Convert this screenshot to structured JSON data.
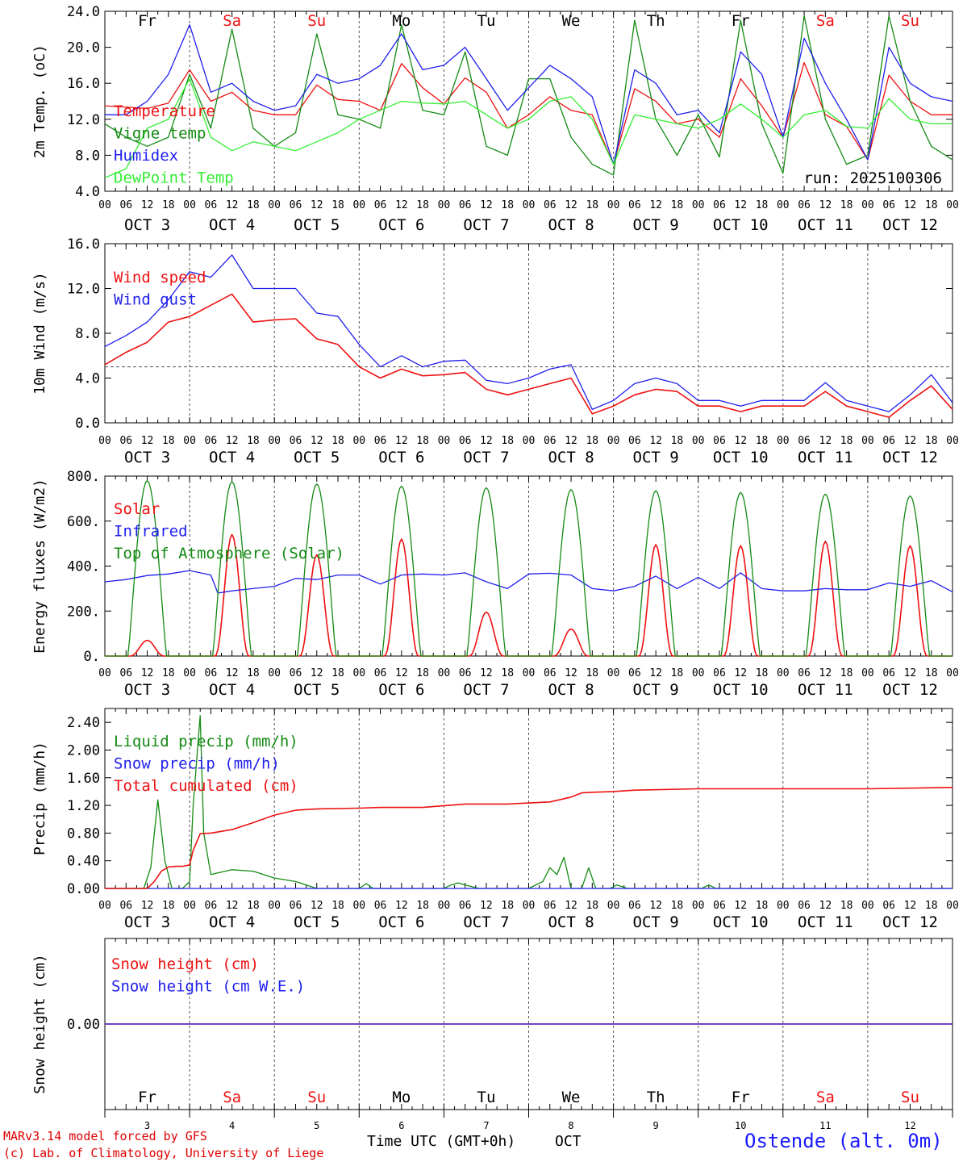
{
  "colors": {
    "red": "#ee1111",
    "green": "#138a13",
    "blue": "#1f1fee",
    "lightgreen": "#33ee33",
    "grid": "#555555"
  },
  "days": [
    "Fr",
    "Sa",
    "Su",
    "Mo",
    "Tu",
    "We",
    "Th",
    "Fr",
    "Sa",
    "Su"
  ],
  "weekend": [
    false,
    true,
    true,
    false,
    false,
    false,
    false,
    false,
    true,
    true
  ],
  "day_axis_labels": [
    "OCT  3",
    "OCT  4",
    "OCT  5",
    "OCT  6",
    "OCT  7",
    "OCT  8",
    "OCT  9",
    "OCT 10",
    "OCT 11",
    "OCT 12"
  ],
  "hour_ticks": [
    "00",
    "06",
    "12",
    "18"
  ],
  "end_tick": "00",
  "bottom_day_numbers": [
    "3",
    "4",
    "5",
    "6",
    "7",
    "8",
    "9",
    "10",
    "11",
    "12"
  ],
  "footer": {
    "credit1": "MARv3.14 model forced by GFS",
    "credit2": "(c) Lab. of Climatology, University of Liege",
    "xtitle": "Time UTC (GMT+0h)",
    "month": "OCT",
    "station": "Ostende (alt. 0m)"
  },
  "chart_data": [
    {
      "type": "line",
      "ylabel": "2m Temp. (oC)",
      "ylim": [
        4,
        24
      ],
      "yticks": [
        "4.0",
        "8.0",
        "12.0",
        "16.0",
        "20.0",
        "24.0"
      ],
      "x_unit": "hours since OCT 3 00 UTC",
      "annotation": "run: 2025100306",
      "series": [
        {
          "name": "Temperature",
          "color": "red",
          "x": [
            0,
            12,
            18,
            24,
            30,
            36,
            42,
            48,
            54,
            60,
            66,
            72,
            78,
            84,
            90,
            96,
            102,
            108,
            114,
            120,
            126,
            132,
            138,
            144,
            150,
            156,
            162,
            168,
            174,
            180,
            186,
            192,
            198,
            204,
            210,
            216,
            222,
            228,
            234,
            240
          ],
          "y": [
            13.5,
            13.2,
            13.8,
            17.5,
            14.0,
            15.0,
            13.0,
            12.5,
            12.5,
            15.8,
            14.2,
            14.0,
            13.0,
            18.2,
            15.5,
            13.7,
            16.6,
            15.0,
            11.0,
            12.5,
            14.5,
            13.0,
            12.5,
            7.0,
            15.4,
            14.0,
            11.5,
            12.0,
            10.0,
            16.5,
            13.5,
            10.0,
            18.3,
            12.5,
            11.2,
            7.5,
            16.9,
            14.0,
            12.5,
            12.5
          ]
        },
        {
          "name": "Vigne temp",
          "color": "green",
          "x": [
            0,
            6,
            12,
            18,
            24,
            30,
            36,
            42,
            48,
            54,
            60,
            66,
            72,
            78,
            84,
            90,
            96,
            102,
            108,
            114,
            120,
            126,
            132,
            138,
            144,
            150,
            156,
            162,
            168,
            174,
            180,
            186,
            192,
            198,
            204,
            210,
            216,
            222,
            228,
            234,
            240
          ],
          "y": [
            11.5,
            10.0,
            9.0,
            10.0,
            17.0,
            11.0,
            22.0,
            11.0,
            9.0,
            10.5,
            21.5,
            12.5,
            12.0,
            11.0,
            22.5,
            13.0,
            12.5,
            19.5,
            9.0,
            8.0,
            16.5,
            16.5,
            10.0,
            7.0,
            5.8,
            23.0,
            12.0,
            8.0,
            12.5,
            7.8,
            23.0,
            11.5,
            6.0,
            23.5,
            12.0,
            7.0,
            8.0,
            23.5,
            14.0,
            9.0,
            7.5
          ]
        },
        {
          "name": "Humidex",
          "color": "blue",
          "x": [
            0,
            6,
            12,
            18,
            24,
            30,
            36,
            42,
            48,
            54,
            60,
            66,
            72,
            78,
            84,
            90,
            96,
            102,
            108,
            114,
            120,
            126,
            132,
            138,
            144,
            150,
            156,
            162,
            168,
            174,
            180,
            186,
            192,
            198,
            204,
            210,
            216,
            222,
            228,
            234,
            240
          ],
          "y": [
            12.5,
            12.5,
            14.0,
            17.0,
            22.5,
            15.0,
            16.0,
            14.0,
            13.0,
            13.5,
            17.0,
            16.0,
            16.5,
            18.0,
            21.5,
            17.5,
            18.0,
            20.0,
            16.5,
            13.0,
            15.5,
            18.0,
            16.5,
            14.5,
            7.0,
            17.5,
            16.0,
            12.5,
            13.0,
            10.5,
            19.5,
            17.0,
            10.0,
            21.0,
            16.0,
            12.0,
            7.5,
            20.0,
            16.0,
            14.5,
            14.0
          ]
        },
        {
          "name": "DewPoint Temp",
          "color": "lightgreen",
          "x": [
            0,
            6,
            12,
            18,
            24,
            30,
            36,
            42,
            48,
            54,
            60,
            66,
            72,
            78,
            84,
            90,
            96,
            102,
            108,
            114,
            120,
            126,
            132,
            138,
            144,
            150,
            156,
            162,
            168,
            174,
            180,
            186,
            192,
            198,
            204,
            210,
            216,
            222,
            228,
            234,
            240
          ],
          "y": [
            5.5,
            6.5,
            11.0,
            12.0,
            16.5,
            10.0,
            8.5,
            9.5,
            9.0,
            8.5,
            9.5,
            10.5,
            12.0,
            13.0,
            14.0,
            13.8,
            13.7,
            14.0,
            12.5,
            11.0,
            12.0,
            14.0,
            14.5,
            12.0,
            7.0,
            12.5,
            12.0,
            11.5,
            11.0,
            12.0,
            13.7,
            12.0,
            10.0,
            12.5,
            13.0,
            11.2,
            11.0,
            14.3,
            12.0,
            11.5,
            11.5
          ]
        }
      ]
    },
    {
      "type": "line",
      "ylabel": "10m Wind (m/s)",
      "ylim": [
        0,
        16
      ],
      "yticks": [
        "0.0",
        "4.0",
        "8.0",
        "12.0",
        "16.0"
      ],
      "ref_line": 5.0,
      "series": [
        {
          "name": "Wind speed",
          "color": "red",
          "x": [
            0,
            6,
            12,
            18,
            24,
            30,
            36,
            42,
            48,
            54,
            60,
            66,
            72,
            78,
            84,
            90,
            96,
            102,
            108,
            114,
            120,
            126,
            132,
            138,
            144,
            150,
            156,
            162,
            168,
            174,
            180,
            186,
            192,
            198,
            204,
            210,
            216,
            222,
            228,
            234,
            240
          ],
          "y": [
            5.2,
            6.3,
            7.2,
            9.0,
            9.5,
            10.5,
            11.5,
            9.0,
            9.2,
            9.3,
            7.5,
            7.0,
            5.0,
            4.0,
            4.8,
            4.2,
            4.3,
            4.5,
            3.0,
            2.5,
            3.0,
            3.5,
            4.0,
            0.8,
            1.5,
            2.5,
            3.0,
            2.8,
            1.5,
            1.5,
            1.0,
            1.5,
            1.5,
            1.5,
            2.8,
            1.5,
            1.0,
            0.5,
            2.0,
            3.3,
            1.2
          ]
        },
        {
          "name": "Wind gust",
          "color": "blue",
          "x": [
            0,
            6,
            12,
            18,
            24,
            30,
            36,
            42,
            48,
            54,
            60,
            66,
            72,
            78,
            84,
            90,
            96,
            102,
            108,
            114,
            120,
            126,
            132,
            138,
            144,
            150,
            156,
            162,
            168,
            174,
            180,
            186,
            192,
            198,
            204,
            210,
            216,
            222,
            228,
            234,
            240
          ],
          "y": [
            6.8,
            7.8,
            9.0,
            11.0,
            13.5,
            13.0,
            15.0,
            12.0,
            12.0,
            12.0,
            9.8,
            9.5,
            7.0,
            5.0,
            6.0,
            5.0,
            5.5,
            5.6,
            3.8,
            3.5,
            4.0,
            4.8,
            5.2,
            1.2,
            2.0,
            3.5,
            4.0,
            3.5,
            2.0,
            2.0,
            1.5,
            2.0,
            2.0,
            2.0,
            3.6,
            2.0,
            1.5,
            1.0,
            2.5,
            4.3,
            1.8
          ]
        }
      ]
    },
    {
      "type": "line",
      "ylabel": "Energy fluxes (W/m2)",
      "ylim": [
        0,
        800
      ],
      "yticks": [
        "0.",
        "200.",
        "400.",
        "600.",
        "800."
      ],
      "series": [
        {
          "name": "Solar",
          "color": "red",
          "daily_peaks": [
            70,
            540,
            450,
            520,
            195,
            120,
            495,
            490,
            510,
            490
          ]
        },
        {
          "name": "Infrared",
          "color": "blue",
          "x": [
            0,
            6,
            12,
            18,
            24,
            30,
            32,
            36,
            42,
            48,
            54,
            60,
            66,
            72,
            78,
            84,
            90,
            96,
            102,
            108,
            114,
            120,
            126,
            132,
            138,
            144,
            150,
            156,
            162,
            168,
            174,
            180,
            186,
            192,
            198,
            204,
            210,
            216,
            222,
            228,
            234,
            240
          ],
          "y": [
            330,
            340,
            358,
            365,
            380,
            360,
            280,
            290,
            300,
            310,
            345,
            340,
            360,
            360,
            320,
            360,
            365,
            360,
            370,
            330,
            300,
            365,
            368,
            360,
            300,
            290,
            310,
            355,
            300,
            350,
            300,
            370,
            300,
            290,
            290,
            300,
            295,
            295,
            325,
            310,
            335,
            285
          ]
        },
        {
          "name": "Top of Atmosphere (Solar)",
          "color": "green",
          "daily_peaks": [
            780,
            775,
            765,
            755,
            748,
            740,
            735,
            727,
            720,
            712
          ]
        }
      ]
    },
    {
      "type": "line",
      "ylabel": "Precip (mm/h)",
      "ylim": [
        0,
        2.6
      ],
      "yticks": [
        "0.00",
        "0.40",
        "0.80",
        "1.20",
        "1.60",
        "2.00",
        "2.40"
      ],
      "series": [
        {
          "name": "Liquid precip (mm/h)",
          "color": "green",
          "x": [
            0,
            11,
            13,
            15,
            17,
            19,
            22,
            23,
            24,
            25,
            27,
            28,
            30,
            36,
            42,
            48,
            54,
            60,
            66,
            72,
            74,
            76,
            96,
            98,
            100,
            102,
            106,
            120,
            124,
            126,
            128,
            130,
            132,
            135,
            137,
            139,
            143,
            145,
            148,
            169,
            171,
            173,
            240
          ],
          "y": [
            0,
            0,
            0.3,
            1.28,
            0.4,
            0,
            0,
            0.05,
            0.1,
            1.2,
            2.5,
            0.8,
            0.2,
            0.27,
            0.25,
            0.15,
            0.1,
            0,
            0,
            0,
            0.07,
            0,
            0,
            0.05,
            0.08,
            0.05,
            0,
            0,
            0.1,
            0.3,
            0.2,
            0.45,
            0,
            0,
            0.3,
            0,
            0,
            0.05,
            0,
            0,
            0.05,
            0,
            0
          ]
        },
        {
          "name": "Snow precip (mm/h)",
          "color": "blue",
          "x": [
            0,
            240
          ],
          "y": [
            0,
            0
          ]
        },
        {
          "name": "Total cumulated (cm)",
          "color": "red",
          "x": [
            0,
            12,
            14,
            16,
            18,
            20,
            22,
            24,
            25,
            27,
            30,
            36,
            42,
            48,
            54,
            60,
            72,
            78,
            90,
            102,
            114,
            126,
            132,
            135,
            138,
            144,
            150,
            168,
            192,
            216,
            240
          ],
          "y": [
            0,
            0,
            0.1,
            0.25,
            0.31,
            0.32,
            0.32,
            0.34,
            0.55,
            0.79,
            0.8,
            0.85,
            0.95,
            1.06,
            1.13,
            1.15,
            1.16,
            1.17,
            1.17,
            1.22,
            1.22,
            1.25,
            1.32,
            1.38,
            1.39,
            1.4,
            1.42,
            1.44,
            1.44,
            1.44,
            1.46
          ]
        }
      ]
    },
    {
      "type": "line",
      "ylabel": "Snow height (cm)",
      "ylim": [
        -1,
        1
      ],
      "yticks": [
        "0.00"
      ],
      "series": [
        {
          "name": "Snow height (cm)",
          "color": "red",
          "x": [
            0,
            240
          ],
          "y": [
            0,
            0
          ]
        },
        {
          "name": "Snow height (cm W.E.)",
          "color": "blue",
          "x": [
            0,
            240
          ],
          "y": [
            0,
            0
          ]
        }
      ]
    }
  ]
}
